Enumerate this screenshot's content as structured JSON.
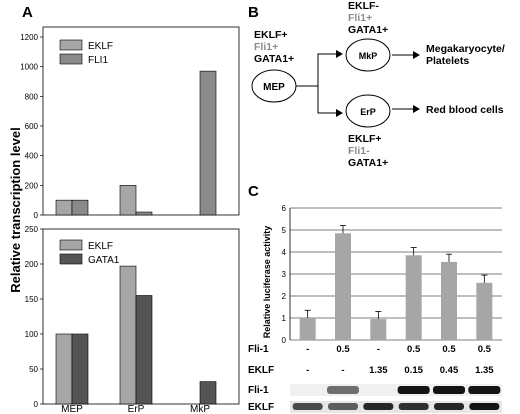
{
  "panel_a": {
    "letter": "A",
    "ylabel": "Relative transcription level",
    "x_categories": [
      "MEP",
      "ErP",
      "MkP"
    ]
  },
  "chart_data": [
    {
      "type": "bar",
      "categories": [
        "MEP",
        "ErP",
        "MkP"
      ],
      "series": [
        {
          "name": "EKLF",
          "values": [
            100,
            200,
            0
          ]
        },
        {
          "name": "FLI1",
          "values": [
            100,
            20,
            970
          ]
        }
      ],
      "yticks": [
        0,
        200,
        400,
        600,
        800,
        1000,
        1200
      ],
      "ylim": [
        0,
        1200
      ],
      "colors": {
        "EKLF": "#a6a6a6",
        "FLI1": "#8a8a8a"
      }
    },
    {
      "type": "bar",
      "categories": [
        "MEP",
        "ErP",
        "MkP"
      ],
      "series": [
        {
          "name": "EKLF",
          "values": [
            100,
            197,
            0
          ]
        },
        {
          "name": "GATA1",
          "values": [
            100,
            155,
            32
          ]
        }
      ],
      "yticks": [
        0,
        50,
        100,
        150,
        200,
        250
      ],
      "ylim": [
        0,
        250
      ],
      "colors": {
        "EKLF": "#a6a6a6",
        "GATA1": "#555555"
      }
    },
    {
      "type": "bar",
      "ylabel": "Relative luciferase activity",
      "categories": [
        "1",
        "2",
        "3",
        "4",
        "5",
        "6"
      ],
      "series": [
        {
          "values": [
            1.0,
            4.85,
            0.95,
            3.85,
            3.55,
            2.6
          ],
          "errors": [
            0.35,
            0.35,
            0.35,
            0.35,
            0.35,
            0.35
          ]
        }
      ],
      "yticks": [
        0,
        1,
        2,
        3,
        4,
        5,
        6
      ],
      "ylim": [
        0,
        6
      ],
      "colors": {
        "bar": "#a6a6a6"
      }
    }
  ],
  "panel_b": {
    "letter": "B",
    "mep": {
      "node": "MEP",
      "l1": "EKLF+",
      "l2": "Fli1+",
      "l3": "GATA1+"
    },
    "mkp": {
      "node": "MkP",
      "l1": "EKLF-",
      "l2": "Fli1+",
      "l3": "GATA1+"
    },
    "erp": {
      "node": "ErP",
      "l1": "EKLF+",
      "l2": "Fli1-",
      "l3": "GATA1+"
    },
    "out_mk_1": "Megakaryocyte/",
    "out_mk_2": "Platelets",
    "out_erp": "Red blood cells"
  },
  "panel_c": {
    "letter": "C",
    "fli_label": "Fli-1",
    "eklf_label": "EKLF",
    "fli_values": [
      "-",
      "0.5",
      "-",
      "0.5",
      "0.5",
      "0.5"
    ],
    "eklf_values": [
      "-",
      "-",
      "1.35",
      "0.15",
      "0.45",
      "1.35"
    ],
    "blot_fli": "Fli-1",
    "blot_eklf": "EKLF",
    "blot_fli_levels": [
      0,
      0.5,
      0,
      1,
      1,
      1
    ],
    "blot_eklf_levels": [
      0.7,
      0.6,
      0.9,
      0.85,
      0.9,
      1
    ]
  }
}
